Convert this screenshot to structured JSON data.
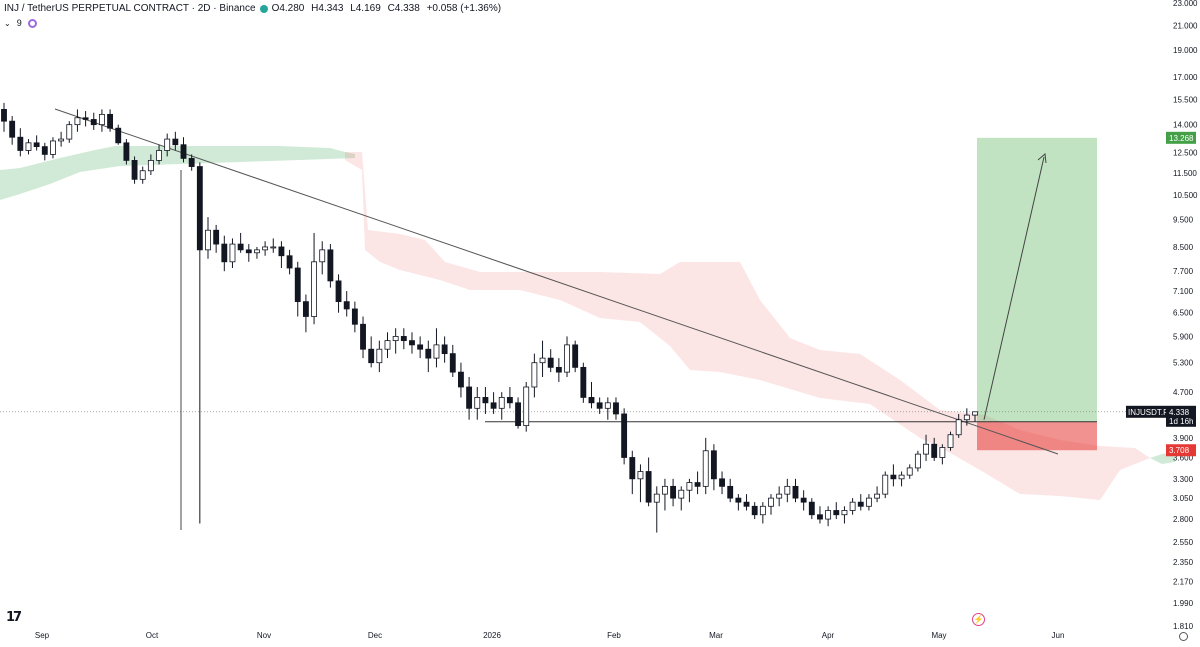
{
  "header": {
    "symbol": "INJ / TetherUS PERPETUAL CONTRACT · 2D · Binance",
    "open": "O4.280",
    "high": "H4.343",
    "low": "L4.169",
    "close": "C4.338",
    "change": "+0.058 (+1.36%)",
    "indicator_count": "9",
    "status_color": "#26a69a"
  },
  "chart_data": {
    "type": "candlestick",
    "y_axis_labels": [
      "23.000",
      "21.000",
      "19.000",
      "17.000",
      "15.500",
      "14.000",
      "12.500",
      "11.500",
      "10.500",
      "9.500",
      "8.500",
      "7.700",
      "7.100",
      "6.500",
      "5.900",
      "5.300",
      "4.700",
      "3.900",
      "3.600",
      "3.300",
      "3.050",
      "2.800",
      "2.550",
      "2.350",
      "2.170",
      "1.990",
      "1.810"
    ],
    "y_axis_scale": "log",
    "x_axis_labels": [
      "Sep",
      "Oct",
      "Nov",
      "Dec",
      "2026",
      "Feb",
      "Mar",
      "Apr",
      "May",
      "Jun"
    ],
    "last_price": "4.338",
    "last_price_symbol": "INJUSDT.P",
    "countdown": "1d 16h",
    "target_price": "13.268",
    "stop_price": "3.708",
    "candles": [
      [
        14.9,
        15.3,
        13.6,
        14.2
      ],
      [
        14.2,
        14.5,
        12.9,
        13.3
      ],
      [
        13.3,
        13.8,
        12.3,
        12.6
      ],
      [
        12.6,
        13.2,
        12.4,
        13.0
      ],
      [
        13.0,
        13.4,
        12.6,
        12.8
      ],
      [
        12.8,
        13.0,
        12.1,
        12.4
      ],
      [
        12.4,
        13.3,
        12.2,
        13.1
      ],
      [
        13.1,
        13.6,
        12.8,
        13.2
      ],
      [
        13.2,
        14.2,
        13.0,
        14.0
      ],
      [
        14.0,
        14.9,
        13.6,
        14.4
      ],
      [
        14.4,
        14.8,
        13.9,
        14.3
      ],
      [
        14.3,
        14.7,
        13.7,
        14.0
      ],
      [
        14.0,
        14.9,
        13.6,
        14.6
      ],
      [
        14.6,
        14.9,
        13.6,
        13.8
      ],
      [
        13.8,
        14.0,
        12.9,
        13.0
      ],
      [
        13.0,
        13.2,
        11.9,
        12.1
      ],
      [
        12.1,
        12.3,
        11.0,
        11.2
      ],
      [
        11.2,
        11.8,
        11.0,
        11.6
      ],
      [
        11.6,
        12.4,
        11.4,
        12.1
      ],
      [
        12.1,
        12.9,
        11.9,
        12.6
      ],
      [
        12.6,
        13.5,
        12.3,
        13.2
      ],
      [
        13.2,
        13.6,
        12.6,
        12.9
      ],
      [
        12.9,
        13.3,
        12.0,
        12.2
      ],
      [
        12.2,
        12.4,
        11.6,
        11.8
      ],
      [
        11.8,
        12.0,
        2.75,
        8.4
      ],
      [
        8.4,
        9.6,
        8.1,
        9.1
      ],
      [
        9.1,
        9.3,
        8.3,
        8.6
      ],
      [
        8.6,
        8.9,
        7.7,
        8.0
      ],
      [
        8.0,
        8.8,
        7.8,
        8.6
      ],
      [
        8.6,
        9.0,
        8.3,
        8.4
      ],
      [
        8.4,
        8.6,
        8.0,
        8.3
      ],
      [
        8.3,
        8.5,
        8.1,
        8.4
      ],
      [
        8.4,
        8.7,
        8.2,
        8.5
      ],
      [
        8.5,
        8.8,
        8.3,
        8.5
      ],
      [
        8.5,
        8.7,
        7.8,
        8.2
      ],
      [
        8.2,
        8.4,
        7.6,
        7.8
      ],
      [
        7.8,
        8.0,
        6.4,
        6.8
      ],
      [
        6.8,
        7.0,
        6.0,
        6.4
      ],
      [
        6.4,
        9.0,
        6.2,
        8.0
      ],
      [
        8.0,
        8.7,
        7.6,
        8.4
      ],
      [
        8.4,
        8.6,
        7.2,
        7.4
      ],
      [
        7.4,
        7.6,
        6.5,
        6.8
      ],
      [
        6.8,
        7.1,
        6.4,
        6.6
      ],
      [
        6.6,
        6.8,
        6.0,
        6.2
      ],
      [
        6.2,
        6.4,
        5.4,
        5.6
      ],
      [
        5.6,
        5.9,
        5.2,
        5.3
      ],
      [
        5.3,
        5.8,
        5.1,
        5.6
      ],
      [
        5.6,
        6.0,
        5.4,
        5.8
      ],
      [
        5.8,
        6.1,
        5.5,
        5.9
      ],
      [
        5.9,
        6.1,
        5.6,
        5.8
      ],
      [
        5.8,
        6.0,
        5.5,
        5.7
      ],
      [
        5.7,
        5.9,
        5.4,
        5.6
      ],
      [
        5.6,
        5.8,
        5.1,
        5.4
      ],
      [
        5.4,
        6.1,
        5.2,
        5.7
      ],
      [
        5.7,
        5.9,
        5.3,
        5.5
      ],
      [
        5.5,
        5.7,
        5.0,
        5.1
      ],
      [
        5.1,
        5.3,
        4.6,
        4.8
      ],
      [
        4.8,
        5.0,
        4.2,
        4.4
      ],
      [
        4.4,
        4.8,
        4.2,
        4.6
      ],
      [
        4.6,
        4.8,
        4.3,
        4.5
      ],
      [
        4.5,
        4.7,
        4.3,
        4.4
      ],
      [
        4.4,
        4.7,
        4.2,
        4.6
      ],
      [
        4.6,
        4.8,
        4.4,
        4.5
      ],
      [
        4.5,
        4.6,
        4.05,
        4.1
      ],
      [
        4.1,
        4.9,
        4.0,
        4.8
      ],
      [
        4.8,
        5.5,
        4.6,
        5.3
      ],
      [
        5.3,
        5.8,
        5.0,
        5.4
      ],
      [
        5.4,
        5.6,
        5.1,
        5.2
      ],
      [
        5.2,
        5.4,
        4.9,
        5.1
      ],
      [
        5.1,
        5.9,
        5.0,
        5.7
      ],
      [
        5.7,
        5.8,
        5.1,
        5.2
      ],
      [
        5.2,
        5.3,
        4.5,
        4.6
      ],
      [
        4.6,
        4.9,
        4.4,
        4.5
      ],
      [
        4.5,
        4.6,
        4.3,
        4.4
      ],
      [
        4.4,
        4.6,
        4.2,
        4.5
      ],
      [
        4.5,
        4.6,
        4.2,
        4.3
      ],
      [
        4.3,
        4.4,
        3.5,
        3.6
      ],
      [
        3.6,
        3.7,
        3.1,
        3.3
      ],
      [
        3.3,
        3.5,
        3.0,
        3.4
      ],
      [
        3.4,
        3.6,
        2.95,
        3.0
      ],
      [
        3.0,
        3.2,
        2.65,
        3.1
      ],
      [
        3.1,
        3.3,
        2.9,
        3.2
      ],
      [
        3.2,
        3.3,
        2.95,
        3.05
      ],
      [
        3.05,
        3.2,
        2.9,
        3.15
      ],
      [
        3.15,
        3.3,
        3.0,
        3.25
      ],
      [
        3.25,
        3.4,
        3.1,
        3.2
      ],
      [
        3.2,
        3.9,
        3.1,
        3.7
      ],
      [
        3.7,
        3.8,
        3.15,
        3.3
      ],
      [
        3.3,
        3.4,
        3.1,
        3.2
      ],
      [
        3.2,
        3.3,
        3.0,
        3.05
      ],
      [
        3.05,
        3.1,
        2.9,
        3.0
      ],
      [
        3.0,
        3.1,
        2.9,
        2.95
      ],
      [
        2.95,
        3.0,
        2.8,
        2.85
      ],
      [
        2.85,
        3.0,
        2.75,
        2.95
      ],
      [
        2.95,
        3.1,
        2.85,
        3.05
      ],
      [
        3.05,
        3.2,
        2.95,
        3.1
      ],
      [
        3.1,
        3.3,
        3.0,
        3.2
      ],
      [
        3.2,
        3.3,
        3.0,
        3.05
      ],
      [
        3.05,
        3.15,
        2.9,
        3.0
      ],
      [
        3.0,
        3.05,
        2.8,
        2.85
      ],
      [
        2.85,
        2.95,
        2.75,
        2.8
      ],
      [
        2.8,
        2.95,
        2.72,
        2.9
      ],
      [
        2.9,
        3.0,
        2.8,
        2.85
      ],
      [
        2.85,
        2.95,
        2.75,
        2.9
      ],
      [
        2.9,
        3.05,
        2.85,
        3.0
      ],
      [
        3.0,
        3.1,
        2.9,
        2.95
      ],
      [
        2.95,
        3.1,
        2.9,
        3.05
      ],
      [
        3.05,
        3.2,
        3.0,
        3.1
      ],
      [
        3.1,
        3.4,
        3.05,
        3.35
      ],
      [
        3.35,
        3.5,
        3.2,
        3.3
      ],
      [
        3.3,
        3.4,
        3.2,
        3.35
      ],
      [
        3.35,
        3.5,
        3.3,
        3.45
      ],
      [
        3.45,
        3.7,
        3.4,
        3.65
      ],
      [
        3.65,
        3.95,
        3.55,
        3.8
      ],
      [
        3.8,
        3.9,
        3.55,
        3.6
      ],
      [
        3.6,
        3.8,
        3.5,
        3.75
      ],
      [
        3.75,
        4.0,
        3.7,
        3.95
      ],
      [
        3.95,
        4.3,
        3.9,
        4.2
      ],
      [
        4.2,
        4.4,
        4.1,
        4.28
      ],
      [
        4.28,
        4.343,
        4.169,
        4.338
      ]
    ]
  }
}
